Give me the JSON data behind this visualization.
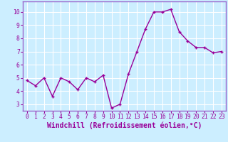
{
  "x": [
    0,
    1,
    2,
    3,
    4,
    5,
    6,
    7,
    8,
    9,
    10,
    11,
    12,
    13,
    14,
    15,
    16,
    17,
    18,
    19,
    20,
    21,
    22,
    23
  ],
  "y": [
    4.8,
    4.4,
    5.0,
    3.6,
    5.0,
    4.7,
    4.1,
    5.0,
    4.7,
    5.2,
    2.7,
    3.0,
    5.3,
    7.0,
    8.7,
    10.0,
    10.0,
    10.2,
    8.5,
    7.8,
    7.3,
    7.3,
    6.9,
    7.0
  ],
  "line_color": "#990099",
  "marker": "+",
  "marker_size": 3.5,
  "line_width": 1.0,
  "xlabel": "Windchill (Refroidissement éolien,°C)",
  "xlabel_fontsize": 7.0,
  "ylim": [
    2.5,
    10.8
  ],
  "xlim": [
    -0.5,
    23.5
  ],
  "yticks": [
    3,
    4,
    5,
    6,
    7,
    8,
    9,
    10
  ],
  "xticks": [
    0,
    1,
    2,
    3,
    4,
    5,
    6,
    7,
    8,
    9,
    10,
    11,
    12,
    13,
    14,
    15,
    16,
    17,
    18,
    19,
    20,
    21,
    22,
    23
  ],
  "tick_fontsize": 5.8,
  "text_color": "#990099",
  "background_color": "#cceeff",
  "grid_color": "#ffffff",
  "spine_color": "#9966cc"
}
